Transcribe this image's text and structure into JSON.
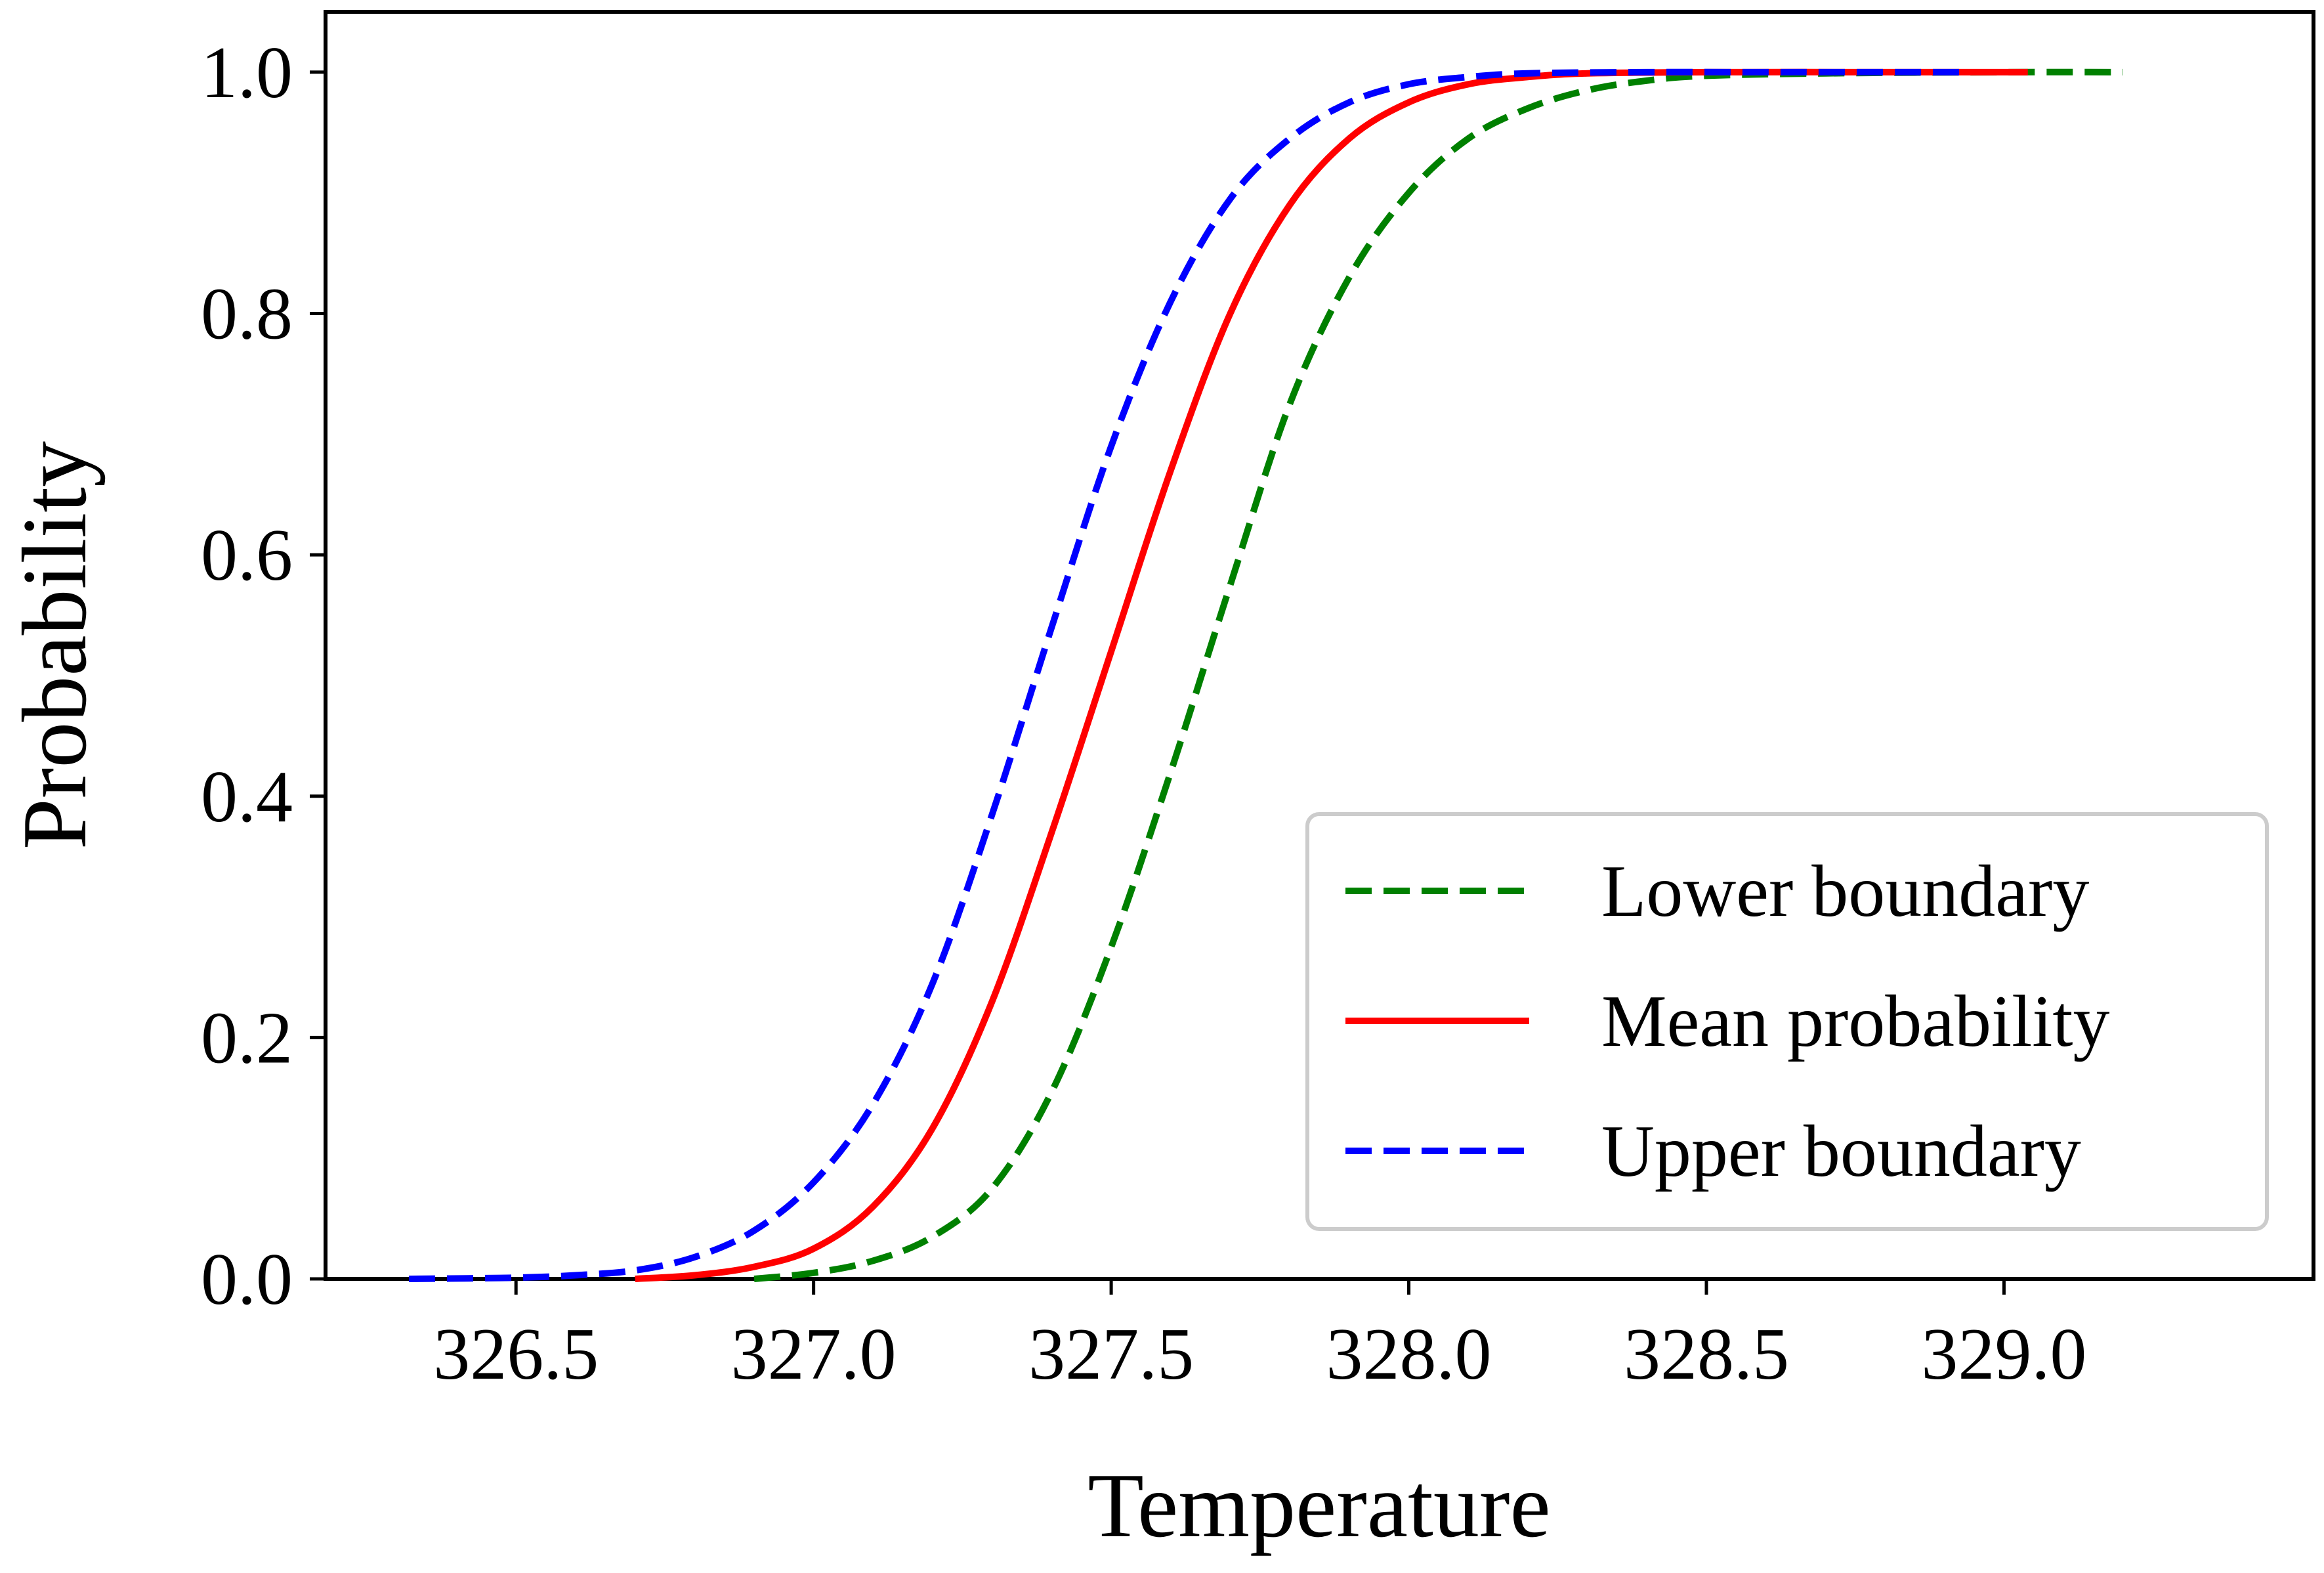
{
  "chart_data": {
    "type": "line",
    "xlabel": "Temperature",
    "ylabel": "Probability",
    "xlim": [
      326.18,
      329.52
    ],
    "ylim": [
      0.0,
      1.05
    ],
    "xticks": [
      {
        "value": 326.5,
        "label": "326.5"
      },
      {
        "value": 327.0,
        "label": "327.0"
      },
      {
        "value": 327.5,
        "label": "327.5"
      },
      {
        "value": 328.0,
        "label": "328.0"
      },
      {
        "value": 328.5,
        "label": "328.5"
      },
      {
        "value": 329.0,
        "label": "329.0"
      }
    ],
    "yticks": [
      {
        "value": 0.0,
        "label": "0.0"
      },
      {
        "value": 0.2,
        "label": "0.2"
      },
      {
        "value": 0.4,
        "label": "0.4"
      },
      {
        "value": 0.6,
        "label": "0.6"
      },
      {
        "value": 0.8,
        "label": "0.8"
      },
      {
        "value": 1.0,
        "label": "1.0"
      }
    ],
    "grid": false,
    "legend_position": "lower-right",
    "series": [
      {
        "name": "Lower boundary",
        "color": "#008000",
        "style": "dashed",
        "x": [
          326.9,
          327.0,
          327.1,
          327.2,
          327.3,
          327.4,
          327.5,
          327.6,
          327.7,
          327.8,
          327.9,
          328.0,
          328.1,
          328.2,
          328.3,
          328.4,
          328.5,
          328.7,
          329.0,
          329.2
        ],
        "y": [
          0.0,
          0.005,
          0.015,
          0.035,
          0.075,
          0.155,
          0.275,
          0.42,
          0.575,
          0.725,
          0.83,
          0.9,
          0.945,
          0.97,
          0.985,
          0.993,
          0.997,
          0.999,
          1.0,
          1.0
        ]
      },
      {
        "name": "Mean probability",
        "color": "#ff0000",
        "style": "solid",
        "x": [
          326.7,
          326.8,
          326.9,
          327.0,
          327.1,
          327.2,
          327.3,
          327.4,
          327.5,
          327.6,
          327.7,
          327.8,
          327.9,
          328.0,
          328.1,
          328.2,
          328.3,
          328.5,
          328.8,
          329.04
        ],
        "y": [
          0.0,
          0.003,
          0.01,
          0.025,
          0.06,
          0.125,
          0.23,
          0.37,
          0.52,
          0.67,
          0.8,
          0.89,
          0.945,
          0.975,
          0.99,
          0.996,
          0.999,
          1.0,
          1.0,
          1.0
        ]
      },
      {
        "name": "Upper boundary",
        "color": "#0000ff",
        "style": "dashed",
        "x": [
          326.32,
          326.5,
          326.6,
          326.7,
          326.8,
          326.9,
          327.0,
          327.1,
          327.2,
          327.3,
          327.4,
          327.5,
          327.6,
          327.7,
          327.8,
          327.9,
          328.0,
          328.1,
          328.2,
          328.4,
          328.6,
          328.93
        ],
        "y": [
          0.0,
          0.001,
          0.003,
          0.007,
          0.018,
          0.04,
          0.08,
          0.145,
          0.245,
          0.385,
          0.54,
          0.69,
          0.81,
          0.895,
          0.945,
          0.975,
          0.99,
          0.996,
          0.999,
          1.0,
          1.0,
          1.0
        ]
      }
    ]
  }
}
